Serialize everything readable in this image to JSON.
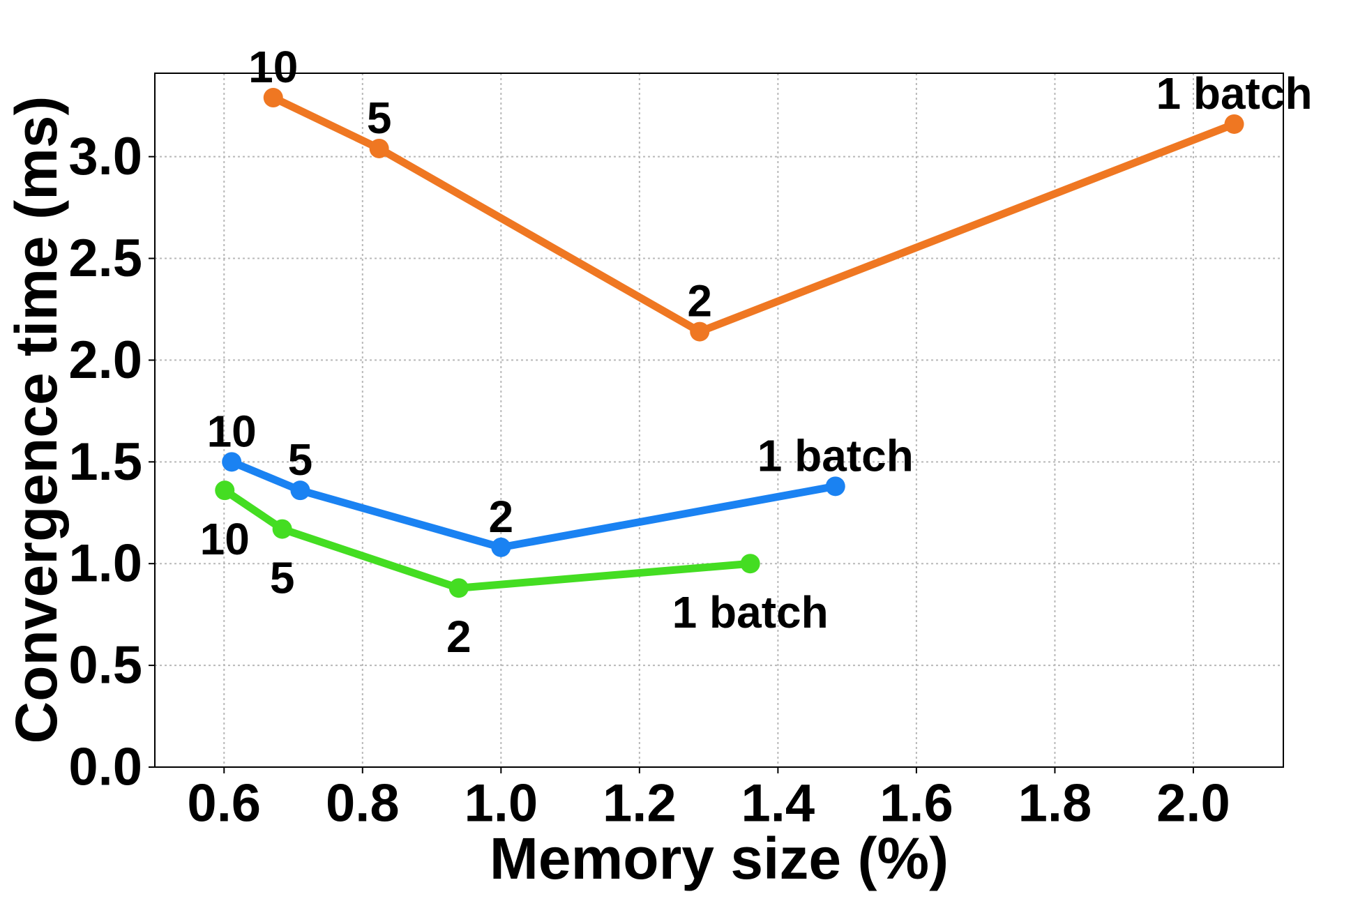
{
  "chart_data": {
    "type": "line",
    "xlabel": "Memory size (%)",
    "ylabel": "Convergence time (ms)",
    "xlim": [
      0.5,
      2.13
    ],
    "ylim": [
      0,
      3.41
    ],
    "xticks": [
      "0.6",
      "0.8",
      "1.0",
      "1.2",
      "1.4",
      "1.6",
      "1.8",
      "2.0"
    ],
    "yticks": [
      "0.0",
      "0.5",
      "1.0",
      "1.5",
      "2.0",
      "2.5",
      "3.0"
    ],
    "grid": true,
    "legend": "none",
    "series": [
      {
        "color": "#ef7722",
        "label_position": "above",
        "points": [
          {
            "x": 0.671,
            "y": 3.29,
            "label": "10"
          },
          {
            "x": 0.824,
            "y": 3.04,
            "label": "5"
          },
          {
            "x": 1.287,
            "y": 2.14,
            "label": "2"
          },
          {
            "x": 2.059,
            "y": 3.16,
            "label": "1 batch"
          }
        ]
      },
      {
        "color": "#1a82f2",
        "label_position": "above",
        "points": [
          {
            "x": 0.611,
            "y": 1.5,
            "label": "10"
          },
          {
            "x": 0.71,
            "y": 1.36,
            "label": "5"
          },
          {
            "x": 1.0,
            "y": 1.08,
            "label": "2"
          },
          {
            "x": 1.483,
            "y": 1.38,
            "label": "1 batch"
          }
        ]
      },
      {
        "color": "#44dd22",
        "label_position": "below",
        "points": [
          {
            "x": 0.601,
            "y": 1.36,
            "label": "10"
          },
          {
            "x": 0.684,
            "y": 1.17,
            "label": "5"
          },
          {
            "x": 0.939,
            "y": 0.88,
            "label": "2"
          },
          {
            "x": 1.36,
            "y": 1.0,
            "label": "1 batch"
          }
        ]
      }
    ]
  }
}
